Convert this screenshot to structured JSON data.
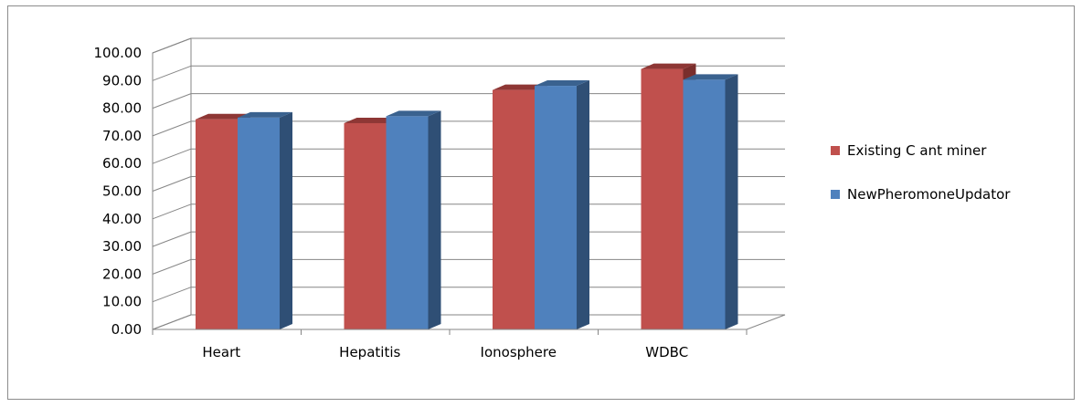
{
  "chart_data": {
    "type": "bar",
    "title": "",
    "xlabel": "",
    "ylabel": "",
    "categories": [
      "Heart",
      "Hepatitis",
      "Ionosphere",
      "WDBC"
    ],
    "series": [
      {
        "name": "Existing C ant miner",
        "values": [
          76.0,
          74.6,
          86.6,
          94.2
        ],
        "color": "#c0504d",
        "side_color": "#7a2e2c",
        "top_color": "#8e3735"
      },
      {
        "name": "NewPheromoneUpdator",
        "values": [
          76.6,
          77.1,
          88.1,
          90.3
        ],
        "color": "#4f81bd",
        "side_color": "#2f4f75",
        "top_color": "#3a628f"
      }
    ],
    "ylim": [
      0,
      100
    ],
    "yticks": [
      "0.00",
      "10.00",
      "20.00",
      "30.00",
      "40.00",
      "50.00",
      "60.00",
      "70.00",
      "80.00",
      "90.00",
      "100.00"
    ],
    "grid": true,
    "legend_position": "right",
    "three_d": true
  }
}
